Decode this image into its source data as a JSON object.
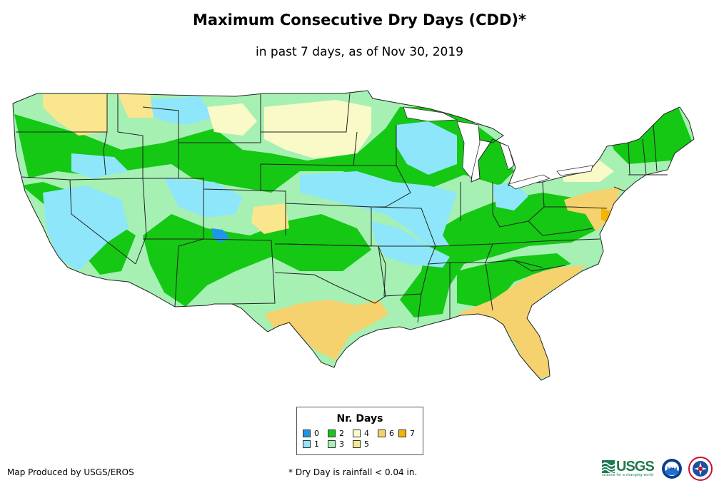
{
  "title": "Maximum Consecutive Dry Days (CDD)*",
  "subtitle": "in past 7 days, as of Nov 30, 2019",
  "legend": {
    "title": "Nr. Days",
    "items": [
      {
        "label": "0",
        "color": "#1e96e6"
      },
      {
        "label": "1",
        "color": "#8ee6fa"
      },
      {
        "label": "2",
        "color": "#14c814"
      },
      {
        "label": "3",
        "color": "#a6f0b4"
      },
      {
        "label": "4",
        "color": "#fafac8"
      },
      {
        "label": "5",
        "color": "#fae68c"
      },
      {
        "label": "6",
        "color": "#f5d26e"
      },
      {
        "label": "7",
        "color": "#f5b400"
      }
    ]
  },
  "credit": "Map Produced by USGS/EROS",
  "footnote": "* Dry Day is rainfall < 0.04 in.",
  "logos": {
    "usgs_text": "USGS",
    "usgs_tagline": "science for a changing world",
    "noaa_text": "noaa",
    "usgs_color": "#1f7a4d"
  }
}
